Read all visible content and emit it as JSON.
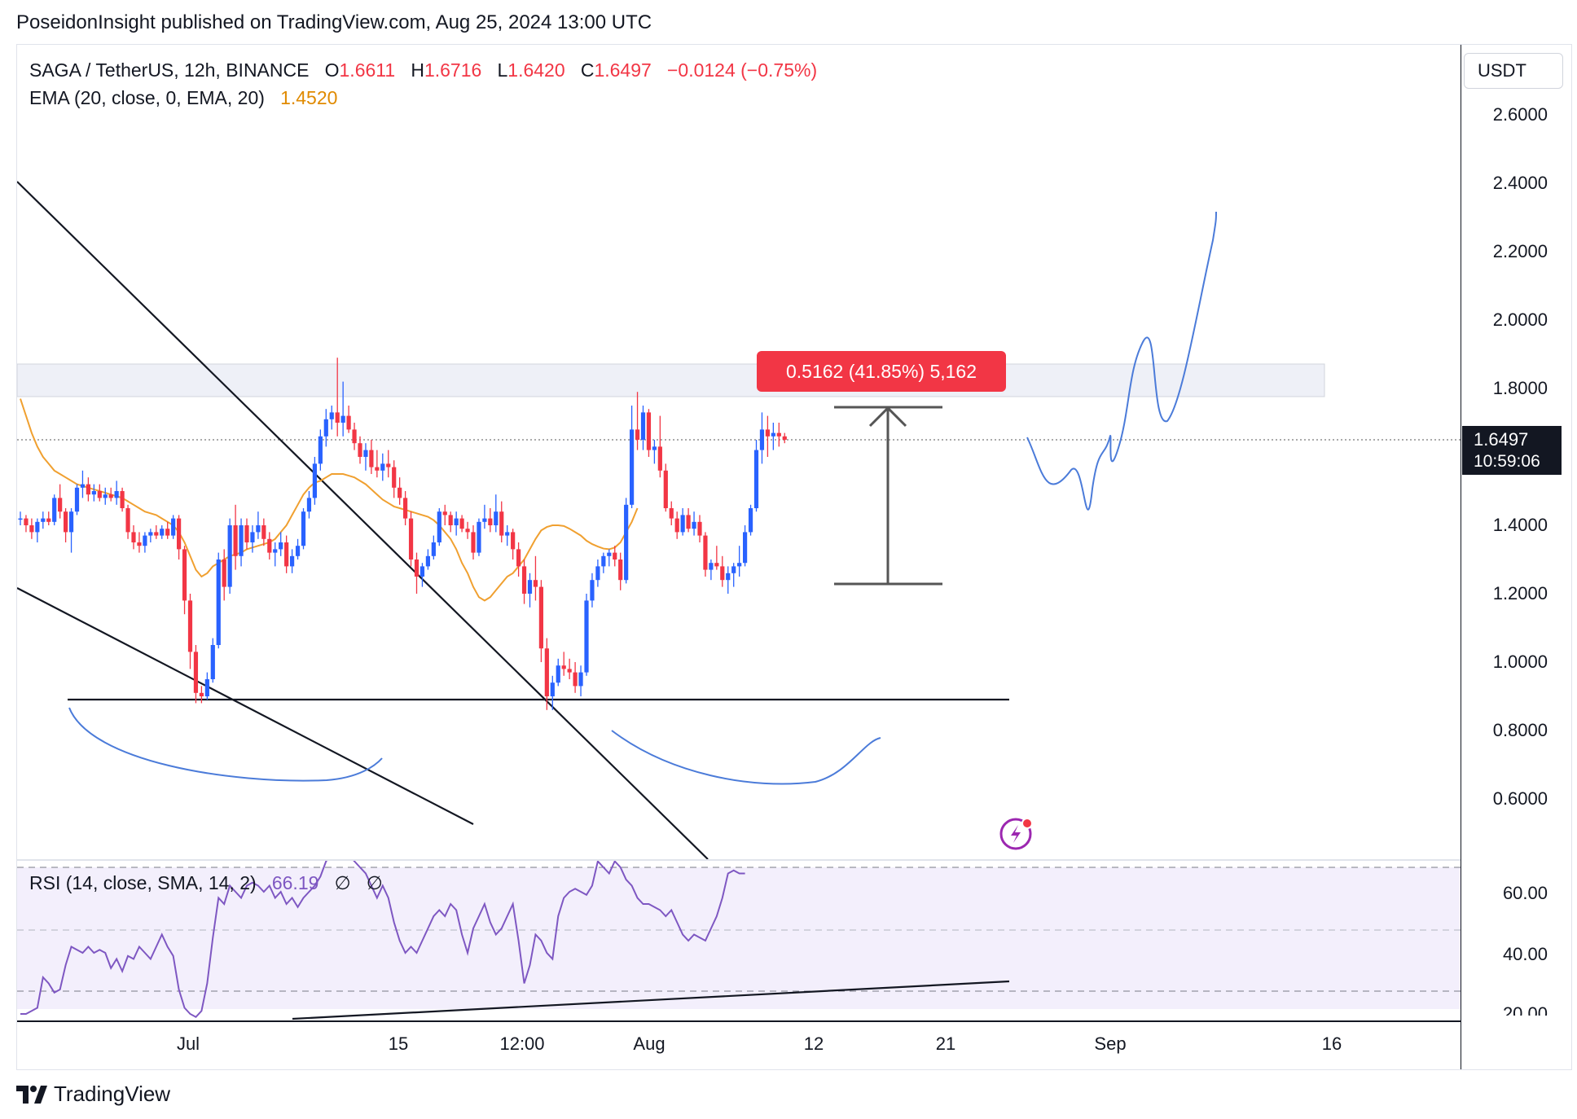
{
  "header": {
    "publish_line": "PoseidonInsight published on TradingView.com, Aug 25, 2024 13:00 UTC"
  },
  "legend": {
    "symbol": "SAGA / TetherUS, 12h, BINANCE",
    "o_label": "O",
    "o": "1.6611",
    "h_label": "H",
    "h": "1.6716",
    "l_label": "L",
    "l": "1.6420",
    "c_label": "C",
    "c": "1.6497",
    "change": "−0.0124 (−0.75%)",
    "ema_label": "EMA (20, close, 0, EMA, 20)",
    "ema_value": "1.4520"
  },
  "rsi_legend": {
    "label": "RSI (14, close, SMA, 14, 2)",
    "value": "66.19",
    "extra1": "∅",
    "extra2": "∅"
  },
  "price_axis": {
    "currency": "USDT",
    "ticks": [
      "2.6000",
      "2.4000",
      "2.2000",
      "2.0000",
      "1.8000",
      "1.4000",
      "1.2000",
      "1.0000",
      "0.8000",
      "0.6000"
    ],
    "current_price": "1.6497",
    "countdown": "10:59:06"
  },
  "rsi_axis": {
    "ticks": [
      "60.00",
      "40.00",
      "20.00"
    ]
  },
  "time_axis": {
    "ticks": [
      "Jul",
      "15",
      "12:00",
      "Aug",
      "12",
      "21",
      "Sep",
      "16"
    ]
  },
  "measure_label": "0.5162 (41.85%) 5,162",
  "footer": {
    "brand": "TradingView"
  },
  "colors": {
    "up": "#2962ff",
    "down": "#f23645",
    "ema": "#f0a030",
    "rsi": "#7e57c2",
    "projection": "#4b7bd9"
  },
  "chart_data": {
    "type": "candlestick",
    "symbol": "SAGA/USDT",
    "interval": "12h",
    "price_axis_range": [
      0.45,
      2.7
    ],
    "rsi_axis_range": [
      18,
      74
    ],
    "last_close": 1.6497,
    "ema20_last": 1.452,
    "rsi_last": 66.19,
    "resistance_zone": [
      1.78,
      1.88
    ],
    "support_line": 0.89,
    "measured_move": {
      "from": 1.23,
      "to": 1.75,
      "change": 0.5162,
      "percent": 41.85
    },
    "ohlc": [
      [
        1.42,
        1.44,
        1.4,
        1.42
      ],
      [
        1.42,
        1.43,
        1.38,
        1.4
      ],
      [
        1.4,
        1.42,
        1.36,
        1.38
      ],
      [
        1.38,
        1.42,
        1.35,
        1.41
      ],
      [
        1.41,
        1.44,
        1.39,
        1.42
      ],
      [
        1.42,
        1.44,
        1.4,
        1.41
      ],
      [
        1.41,
        1.49,
        1.4,
        1.48
      ],
      [
        1.48,
        1.52,
        1.42,
        1.44
      ],
      [
        1.44,
        1.45,
        1.35,
        1.38
      ],
      [
        1.38,
        1.45,
        1.32,
        1.44
      ],
      [
        1.44,
        1.52,
        1.43,
        1.51
      ],
      [
        1.51,
        1.56,
        1.48,
        1.52
      ],
      [
        1.52,
        1.54,
        1.47,
        1.49
      ],
      [
        1.49,
        1.52,
        1.47,
        1.5
      ],
      [
        1.5,
        1.52,
        1.47,
        1.48
      ],
      [
        1.48,
        1.51,
        1.46,
        1.49
      ],
      [
        1.49,
        1.51,
        1.47,
        1.48
      ],
      [
        1.48,
        1.53,
        1.46,
        1.5
      ],
      [
        1.5,
        1.51,
        1.44,
        1.45
      ],
      [
        1.45,
        1.46,
        1.36,
        1.38
      ],
      [
        1.38,
        1.4,
        1.33,
        1.35
      ],
      [
        1.35,
        1.38,
        1.32,
        1.34
      ],
      [
        1.34,
        1.38,
        1.32,
        1.37
      ],
      [
        1.37,
        1.39,
        1.35,
        1.38
      ],
      [
        1.38,
        1.4,
        1.36,
        1.37
      ],
      [
        1.37,
        1.4,
        1.36,
        1.39
      ],
      [
        1.39,
        1.41,
        1.36,
        1.37
      ],
      [
        1.37,
        1.43,
        1.36,
        1.42
      ],
      [
        1.42,
        1.43,
        1.3,
        1.33
      ],
      [
        1.33,
        1.34,
        1.14,
        1.18
      ],
      [
        1.18,
        1.2,
        0.98,
        1.03
      ],
      [
        1.03,
        1.05,
        0.88,
        0.91
      ],
      [
        0.91,
        0.93,
        0.88,
        0.9
      ],
      [
        0.9,
        0.97,
        0.89,
        0.95
      ],
      [
        0.95,
        1.07,
        0.94,
        1.05
      ],
      [
        1.05,
        1.32,
        1.04,
        1.3
      ],
      [
        1.3,
        1.33,
        1.18,
        1.22
      ],
      [
        1.22,
        1.42,
        1.2,
        1.4
      ],
      [
        1.4,
        1.46,
        1.27,
        1.31
      ],
      [
        1.31,
        1.42,
        1.28,
        1.4
      ],
      [
        1.4,
        1.42,
        1.33,
        1.35
      ],
      [
        1.35,
        1.4,
        1.32,
        1.38
      ],
      [
        1.38,
        1.44,
        1.36,
        1.4
      ],
      [
        1.4,
        1.42,
        1.34,
        1.36
      ],
      [
        1.36,
        1.38,
        1.3,
        1.32
      ],
      [
        1.32,
        1.35,
        1.28,
        1.33
      ],
      [
        1.33,
        1.38,
        1.31,
        1.35
      ],
      [
        1.35,
        1.37,
        1.26,
        1.28
      ],
      [
        1.28,
        1.33,
        1.26,
        1.31
      ],
      [
        1.31,
        1.36,
        1.3,
        1.34
      ],
      [
        1.34,
        1.45,
        1.33,
        1.44
      ],
      [
        1.44,
        1.5,
        1.42,
        1.48
      ],
      [
        1.48,
        1.6,
        1.46,
        1.58
      ],
      [
        1.58,
        1.68,
        1.56,
        1.66
      ],
      [
        1.66,
        1.74,
        1.63,
        1.71
      ],
      [
        1.71,
        1.75,
        1.68,
        1.73
      ],
      [
        1.73,
        1.89,
        1.66,
        1.7
      ],
      [
        1.7,
        1.82,
        1.66,
        1.72
      ],
      [
        1.72,
        1.75,
        1.67,
        1.68
      ],
      [
        1.68,
        1.7,
        1.62,
        1.64
      ],
      [
        1.64,
        1.66,
        1.58,
        1.6
      ],
      [
        1.6,
        1.64,
        1.56,
        1.62
      ],
      [
        1.62,
        1.65,
        1.55,
        1.57
      ],
      [
        1.57,
        1.62,
        1.54,
        1.56
      ],
      [
        1.56,
        1.61,
        1.53,
        1.58
      ],
      [
        1.58,
        1.62,
        1.54,
        1.57
      ],
      [
        1.57,
        1.59,
        1.48,
        1.51
      ],
      [
        1.51,
        1.54,
        1.46,
        1.48
      ],
      [
        1.48,
        1.5,
        1.4,
        1.42
      ],
      [
        1.42,
        1.44,
        1.28,
        1.3
      ],
      [
        1.3,
        1.32,
        1.2,
        1.25
      ],
      [
        1.25,
        1.29,
        1.22,
        1.28
      ],
      [
        1.28,
        1.33,
        1.27,
        1.31
      ],
      [
        1.31,
        1.37,
        1.3,
        1.35
      ],
      [
        1.35,
        1.45,
        1.34,
        1.44
      ],
      [
        1.44,
        1.46,
        1.4,
        1.43
      ],
      [
        1.43,
        1.44,
        1.38,
        1.4
      ],
      [
        1.4,
        1.44,
        1.37,
        1.42
      ],
      [
        1.42,
        1.43,
        1.38,
        1.39
      ],
      [
        1.39,
        1.41,
        1.36,
        1.38
      ],
      [
        1.38,
        1.4,
        1.3,
        1.32
      ],
      [
        1.32,
        1.42,
        1.31,
        1.41
      ],
      [
        1.41,
        1.46,
        1.39,
        1.42
      ],
      [
        1.42,
        1.45,
        1.38,
        1.4
      ],
      [
        1.4,
        1.49,
        1.38,
        1.44
      ],
      [
        1.44,
        1.47,
        1.35,
        1.37
      ],
      [
        1.37,
        1.4,
        1.34,
        1.38
      ],
      [
        1.38,
        1.39,
        1.3,
        1.33
      ],
      [
        1.33,
        1.35,
        1.25,
        1.28
      ],
      [
        1.28,
        1.3,
        1.17,
        1.2
      ],
      [
        1.2,
        1.26,
        1.16,
        1.24
      ],
      [
        1.24,
        1.31,
        1.18,
        1.22
      ],
      [
        1.22,
        1.24,
        1.0,
        1.04
      ],
      [
        1.04,
        1.07,
        0.86,
        0.9
      ],
      [
        0.9,
        0.96,
        0.86,
        0.94
      ],
      [
        0.94,
        1.01,
        0.93,
        0.99
      ],
      [
        0.99,
        1.03,
        0.96,
        0.98
      ],
      [
        0.98,
        1.01,
        0.95,
        0.97
      ],
      [
        0.97,
        1.0,
        0.91,
        0.93
      ],
      [
        0.93,
        0.99,
        0.9,
        0.97
      ],
      [
        0.97,
        1.2,
        0.96,
        1.18
      ],
      [
        1.18,
        1.26,
        1.16,
        1.24
      ],
      [
        1.24,
        1.3,
        1.22,
        1.28
      ],
      [
        1.28,
        1.32,
        1.26,
        1.31
      ],
      [
        1.31,
        1.33,
        1.28,
        1.32
      ],
      [
        1.32,
        1.34,
        1.28,
        1.3
      ],
      [
        1.3,
        1.32,
        1.21,
        1.24
      ],
      [
        1.24,
        1.48,
        1.23,
        1.46
      ],
      [
        1.46,
        1.75,
        1.45,
        1.68
      ],
      [
        1.68,
        1.79,
        1.62,
        1.65
      ],
      [
        1.65,
        1.75,
        1.62,
        1.73
      ],
      [
        1.73,
        1.74,
        1.6,
        1.62
      ],
      [
        1.62,
        1.65,
        1.58,
        1.63
      ],
      [
        1.63,
        1.72,
        1.54,
        1.56
      ],
      [
        1.56,
        1.58,
        1.44,
        1.45
      ],
      [
        1.45,
        1.47,
        1.4,
        1.42
      ],
      [
        1.42,
        1.44,
        1.36,
        1.38
      ],
      [
        1.38,
        1.45,
        1.37,
        1.43
      ],
      [
        1.43,
        1.45,
        1.38,
        1.39
      ],
      [
        1.39,
        1.44,
        1.37,
        1.41
      ],
      [
        1.41,
        1.43,
        1.35,
        1.37
      ],
      [
        1.37,
        1.38,
        1.25,
        1.27
      ],
      [
        1.27,
        1.3,
        1.24,
        1.29
      ],
      [
        1.29,
        1.34,
        1.27,
        1.28
      ],
      [
        1.28,
        1.31,
        1.22,
        1.24
      ],
      [
        1.24,
        1.28,
        1.2,
        1.26
      ],
      [
        1.26,
        1.29,
        1.22,
        1.28
      ],
      [
        1.28,
        1.34,
        1.25,
        1.29
      ],
      [
        1.29,
        1.4,
        1.28,
        1.38
      ],
      [
        1.38,
        1.46,
        1.37,
        1.45
      ],
      [
        1.45,
        1.65,
        1.44,
        1.62
      ],
      [
        1.62,
        1.73,
        1.58,
        1.68
      ],
      [
        1.68,
        1.72,
        1.6,
        1.66
      ],
      [
        1.66,
        1.7,
        1.62,
        1.67
      ],
      [
        1.67,
        1.7,
        1.63,
        1.66
      ],
      [
        1.66,
        1.67,
        1.64,
        1.65
      ]
    ],
    "ema": [
      1.77,
      1.72,
      1.67,
      1.63,
      1.6,
      1.58,
      1.56,
      1.55,
      1.54,
      1.53,
      1.52,
      1.515,
      1.51,
      1.505,
      1.5,
      1.495,
      1.49,
      1.485,
      1.48,
      1.47,
      1.46,
      1.45,
      1.44,
      1.435,
      1.43,
      1.42,
      1.41,
      1.4,
      1.38,
      1.35,
      1.31,
      1.27,
      1.25,
      1.26,
      1.28,
      1.29,
      1.3,
      1.31,
      1.315,
      1.32,
      1.33,
      1.335,
      1.34,
      1.345,
      1.35,
      1.36,
      1.38,
      1.4,
      1.43,
      1.46,
      1.49,
      1.51,
      1.525,
      1.53,
      1.54,
      1.55,
      1.55,
      1.55,
      1.545,
      1.54,
      1.53,
      1.52,
      1.505,
      1.49,
      1.475,
      1.465,
      1.455,
      1.45,
      1.445,
      1.44,
      1.435,
      1.43,
      1.425,
      1.415,
      1.4,
      1.38,
      1.36,
      1.33,
      1.29,
      1.26,
      1.22,
      1.19,
      1.18,
      1.19,
      1.21,
      1.23,
      1.25,
      1.26,
      1.28,
      1.3,
      1.33,
      1.36,
      1.385,
      1.395,
      1.4,
      1.4,
      1.398,
      1.39,
      1.38,
      1.37,
      1.355,
      1.345,
      1.338,
      1.332,
      1.33,
      1.335,
      1.35,
      1.38,
      1.41,
      1.45
    ],
    "rsi": [
      20,
      20,
      21,
      22,
      32,
      30,
      27,
      28,
      36,
      42,
      41,
      40,
      42,
      40,
      41,
      40,
      35,
      38,
      34,
      39,
      38,
      42,
      40,
      38,
      42,
      46,
      42,
      39,
      28,
      22,
      20,
      19,
      21,
      30,
      45,
      58,
      56,
      62,
      60,
      58,
      62,
      63,
      62,
      60,
      62,
      58,
      60,
      56,
      58,
      55,
      58,
      60,
      62,
      65,
      70,
      72,
      73,
      71,
      72,
      70,
      68,
      66,
      62,
      58,
      62,
      58,
      50,
      44,
      40,
      42,
      40,
      44,
      48,
      52,
      54,
      52,
      56,
      54,
      46,
      40,
      48,
      52,
      56,
      50,
      46,
      48,
      52,
      56,
      44,
      30,
      36,
      46,
      44,
      40,
      38,
      52,
      58,
      60,
      61,
      60,
      59,
      62,
      70,
      68,
      66,
      70,
      68,
      64,
      62,
      58,
      56,
      56,
      55,
      54,
      52,
      54,
      50,
      46,
      44,
      46,
      45,
      44,
      48,
      52,
      58,
      66,
      67,
      66,
      66
    ]
  }
}
